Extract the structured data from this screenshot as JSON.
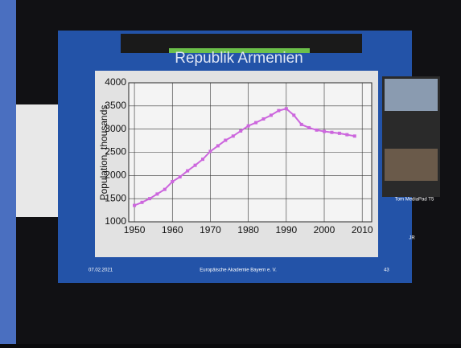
{
  "chart_data": {
    "type": "line",
    "title": "Republik Armenien",
    "y_label": "Population, thousands",
    "x": [
      1950,
      1952,
      1954,
      1956,
      1958,
      1960,
      1962,
      1964,
      1966,
      1968,
      1970,
      1972,
      1974,
      1976,
      1978,
      1980,
      1982,
      1984,
      1986,
      1988,
      1990,
      1992,
      1994,
      1996,
      1998,
      2000,
      2002,
      2004,
      2006,
      2008
    ],
    "series": [
      {
        "color": "#cc66dd",
        "values": [
          1354,
          1420,
          1500,
          1600,
          1700,
          1867,
          1970,
          2100,
          2220,
          2350,
          2520,
          2640,
          2760,
          2850,
          2960,
          3070,
          3140,
          3220,
          3300,
          3400,
          3440,
          3300,
          3100,
          3030,
          2980,
          2950,
          2930,
          2910,
          2880,
          2850
        ]
      }
    ],
    "xlim": [
      1948.5,
      2012.5
    ],
    "xticks": [
      1950,
      1960,
      1970,
      1980,
      1990,
      2000,
      2010
    ],
    "ylim": [
      1000,
      4000
    ],
    "yticks": [
      1000,
      1500,
      2000,
      2500,
      3000,
      3500,
      4000
    ],
    "grid": true
  },
  "slide_footer": {
    "date": "07.02.2021",
    "organization": "Europäische Akademie Bayern e. V.",
    "page": "43"
  },
  "participants": [
    "Tom MediaPad T5",
    "JR"
  ]
}
